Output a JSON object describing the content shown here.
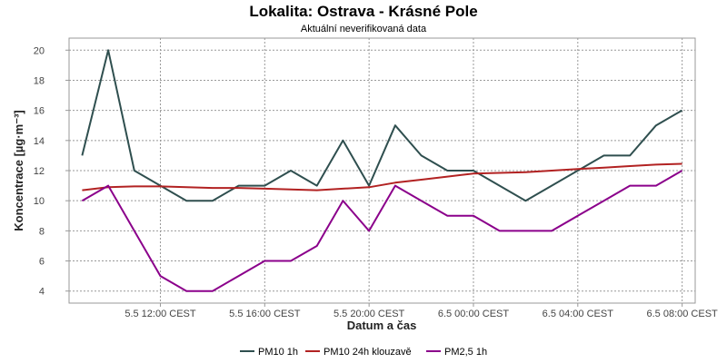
{
  "chart_data": {
    "type": "line",
    "title": "Lokalita: Ostrava - Krásné Pole",
    "subtitle": "Aktuální neverifikovaná data",
    "xlabel": "Datum a čas",
    "ylabel": "Koncentrace [µg·m⁻³]",
    "ylim": [
      3.2,
      20.8
    ],
    "yticks": [
      4,
      6,
      8,
      10,
      12,
      14,
      16,
      18,
      20
    ],
    "x": [
      9,
      10,
      11,
      12,
      13,
      14,
      15,
      16,
      17,
      18,
      19,
      20,
      21,
      22,
      23,
      24,
      25,
      26,
      27,
      28,
      29,
      30,
      31,
      32
    ],
    "xlim": [
      8.5,
      32.5
    ],
    "xticks": [
      12,
      16,
      20,
      24,
      28,
      32
    ],
    "xtick_labels": [
      "5.5 12:00 CEST",
      "5.5 16:00 CEST",
      "5.5 20:00 CEST",
      "6.5 00:00 CEST",
      "6.5 04:00 CEST",
      "6.5 08:00 CEST"
    ],
    "series": [
      {
        "name": "PM10 1h",
        "color": "#2F4F4F",
        "values": [
          13,
          20,
          12,
          11,
          10,
          10,
          11,
          11,
          12,
          11,
          14,
          11,
          15,
          13,
          12,
          12,
          11,
          10,
          11,
          12,
          13,
          13,
          15,
          16
        ]
      },
      {
        "name": "PM10 24h klouzavě",
        "color": "#B22222",
        "values": [
          10.7,
          10.9,
          10.95,
          10.95,
          10.9,
          10.85,
          10.85,
          10.8,
          10.75,
          10.7,
          10.8,
          10.9,
          11.2,
          11.4,
          11.6,
          11.8,
          11.85,
          11.9,
          12.0,
          12.1,
          12.2,
          12.3,
          12.4,
          12.45
        ]
      },
      {
        "name": "PM2,5 1h",
        "color": "#8B008B",
        "values": [
          10,
          11,
          8,
          5,
          4,
          4,
          5,
          6,
          6,
          7,
          10,
          8,
          11,
          10,
          9,
          9,
          8,
          8,
          8,
          9,
          10,
          11,
          11,
          12
        ]
      }
    ],
    "grid": true,
    "legend": "bottom"
  }
}
